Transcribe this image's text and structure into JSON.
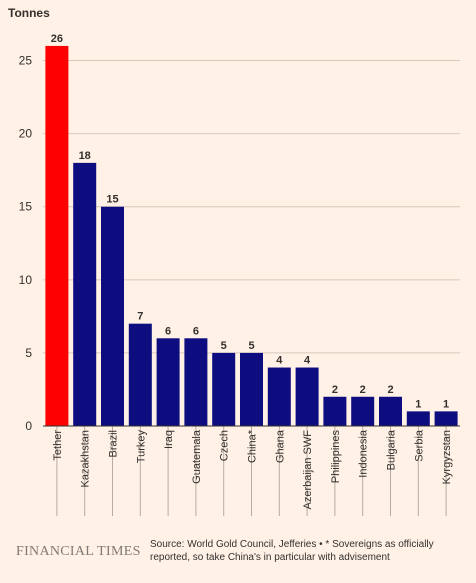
{
  "chart_data": {
    "type": "bar",
    "unit_label": "Tonnes",
    "categories": [
      "Tether",
      "Kazakhstan",
      "Brazil",
      "Turkey",
      "Iraq",
      "Guatemala",
      "Czech",
      "China*",
      "Ghana",
      "Azerbaijan SWF",
      "Philippines",
      "Indonesia",
      "Bulgaria",
      "Serbia",
      "Kyrgyzstan"
    ],
    "values": [
      26,
      18,
      15,
      7,
      6,
      6,
      5,
      5,
      4,
      4,
      2,
      2,
      2,
      1,
      1
    ],
    "highlight_color": "#ff0000",
    "bar_color": "#0d0d80",
    "ylim": [
      0,
      27.5
    ],
    "yticks": [
      0,
      5,
      10,
      15,
      20,
      25
    ],
    "grid": true
  },
  "footer": {
    "brand": "FINANCIAL TIMES",
    "source_line1": "Source: World Gold Council, Jefferies • * Sovereigns as officially",
    "source_line2": "reported, so take China's in particular with advisement"
  }
}
